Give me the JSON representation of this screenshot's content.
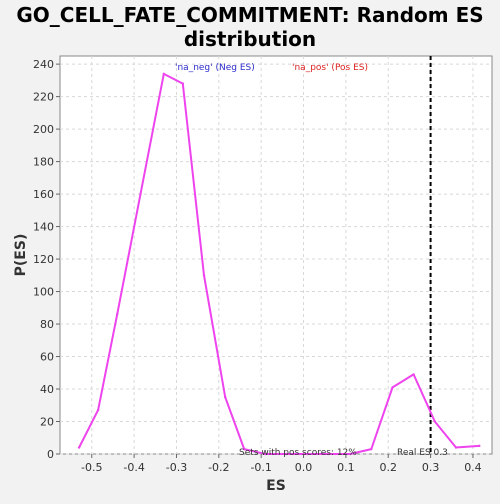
{
  "chart_data": {
    "type": "line",
    "title": "GO_CELL_FATE_COMMITMENT: Random ES distribution",
    "title_lines": [
      "GO_CELL_FATE_COMMITMENT: Random ES",
      "distribution"
    ],
    "xlabel": "ES",
    "ylabel": "P(ES)",
    "xlim": [
      -0.575,
      0.445
    ],
    "ylim": [
      0,
      245
    ],
    "xticks": [
      -0.5,
      -0.4,
      -0.3,
      -0.2,
      -0.1,
      0.0,
      0.1,
      0.2,
      0.3,
      0.4
    ],
    "xtick_labels": [
      "-0.5",
      "-0.4",
      "-0.3",
      "-0.2",
      "-0.1",
      "0.0",
      "0.1",
      "0.2",
      "0.3",
      "0.4"
    ],
    "yticks": [
      0,
      20,
      40,
      60,
      80,
      100,
      120,
      140,
      160,
      180,
      200,
      220,
      240
    ],
    "ytick_labels": [
      "0",
      "20",
      "40",
      "60",
      "80",
      "100",
      "120",
      "140",
      "160",
      "180",
      "200",
      "220",
      "240"
    ],
    "grid": true,
    "series": [
      {
        "color": "#ee44ee",
        "x": [
          -0.53,
          -0.485,
          -0.44,
          -0.385,
          -0.33,
          -0.285,
          -0.235,
          -0.185,
          -0.14,
          -0.09,
          -0.04,
          0.01,
          0.06,
          0.11,
          0.16,
          0.21,
          0.26,
          0.31,
          0.36,
          0.415
        ],
        "y": [
          4,
          27,
          86,
          160,
          234,
          228,
          110,
          35,
          3,
          0,
          0,
          0,
          0,
          0,
          3,
          41,
          49,
          20,
          4,
          5
        ]
      }
    ],
    "reference_line": {
      "x": 0.3,
      "style": "dashed",
      "color": "#000000",
      "label": "Real ES 0.3"
    },
    "legend": [
      {
        "text": "'na_neg' (Neg ES)",
        "color": "#2b2bcc"
      },
      {
        "text": "'na_pos' (Pos ES)",
        "color": "#dd2222"
      }
    ],
    "annotations": {
      "pos_scores": "Sets with pos scores: 12%"
    }
  }
}
